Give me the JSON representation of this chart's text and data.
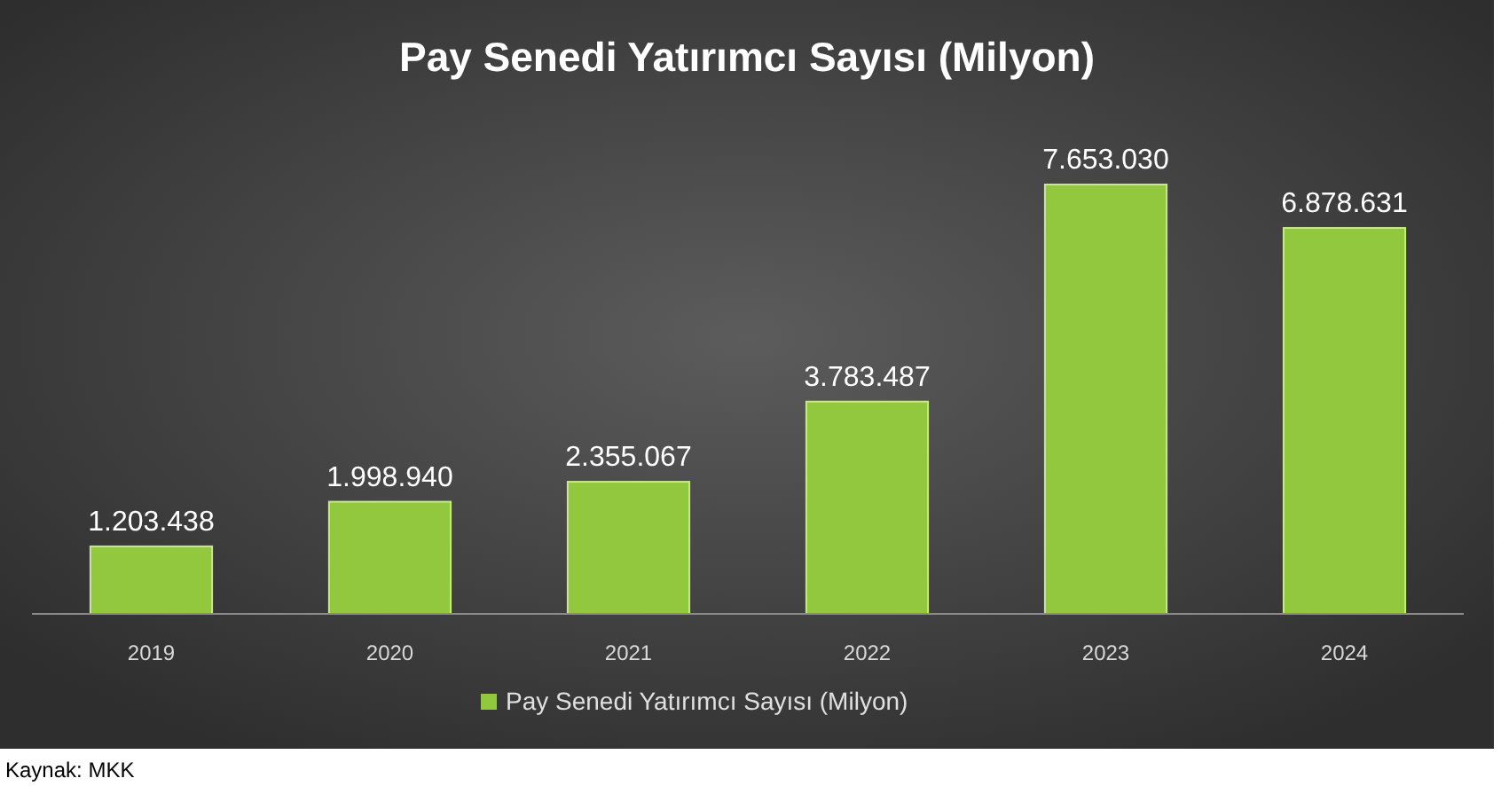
{
  "chart_data": {
    "type": "bar",
    "title": "Pay Senedi Yatırımcı Sayısı (Milyon)",
    "categories": [
      "2019",
      "2020",
      "2021",
      "2022",
      "2023",
      "2024"
    ],
    "series": [
      {
        "name": "Pay Senedi Yatırımcı Sayısı (Milyon)",
        "color": "#92c83e",
        "values": [
          1203438,
          1998940,
          2355067,
          3783487,
          7653030,
          6878631
        ],
        "value_labels": [
          "1.203.438",
          "1.998.940",
          "2.355.067",
          "3.783.487",
          "7.653.030",
          "6.878.631"
        ]
      }
    ],
    "tick_labels": "x",
    "legend": "bottom",
    "annotations": [
      "Kaynak: MKK"
    ]
  }
}
